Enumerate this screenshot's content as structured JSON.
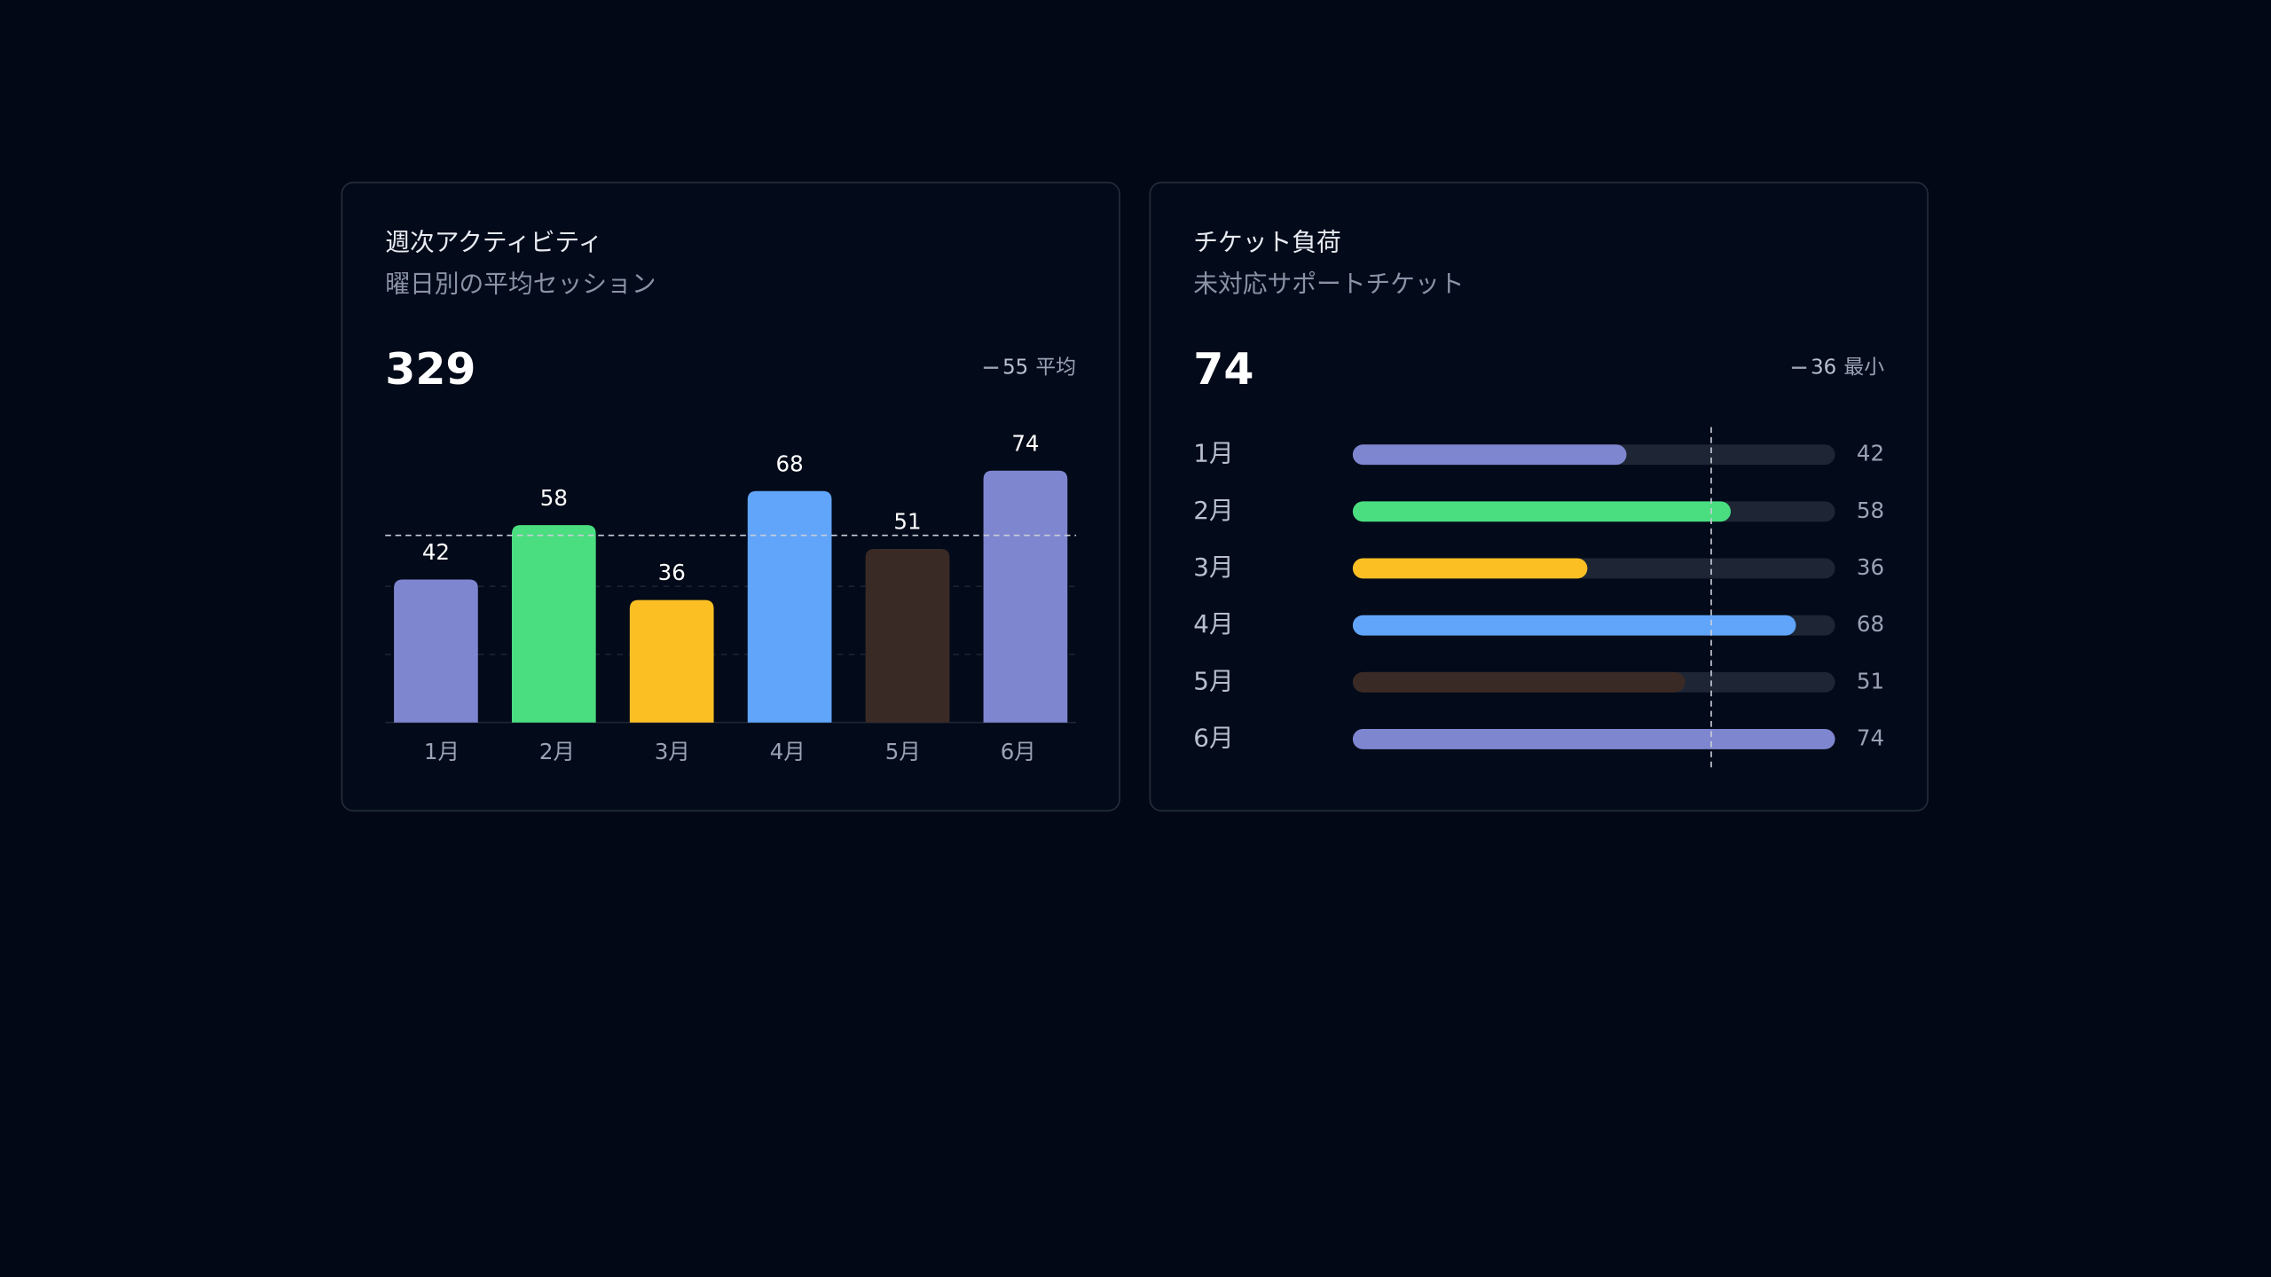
{
  "chart_data": [
    {
      "type": "bar",
      "title": "週次アクティビティ",
      "subtitle": "曜日別の平均セッション",
      "total": 329,
      "reference": {
        "value": 55,
        "label": "平均"
      },
      "categories": [
        "1月",
        "2月",
        "3月",
        "4月",
        "5月",
        "6月"
      ],
      "values": [
        42,
        58,
        36,
        68,
        51,
        74
      ],
      "colors": [
        "#7f86d0",
        "#4ade80",
        "#fbbf24",
        "#60a5fa",
        "#3a2a26",
        "#7f86d0"
      ],
      "ylim": [
        0,
        80
      ],
      "yticks": [
        20,
        40
      ],
      "grid": true
    },
    {
      "type": "hbar",
      "title": "チケット負荷",
      "subtitle": "未対応サポートチケット",
      "total": 74,
      "reference": {
        "value": 36,
        "label": "最小"
      },
      "reference_line": 55,
      "categories": [
        "1月",
        "2月",
        "3月",
        "4月",
        "5月",
        "6月"
      ],
      "values": [
        42,
        58,
        36,
        68,
        51,
        74
      ],
      "colors": [
        "#7f86d0",
        "#4ade80",
        "#fbbf24",
        "#60a5fa",
        "#3a2a26",
        "#7f86d0"
      ],
      "xlim": [
        0,
        74
      ]
    }
  ]
}
